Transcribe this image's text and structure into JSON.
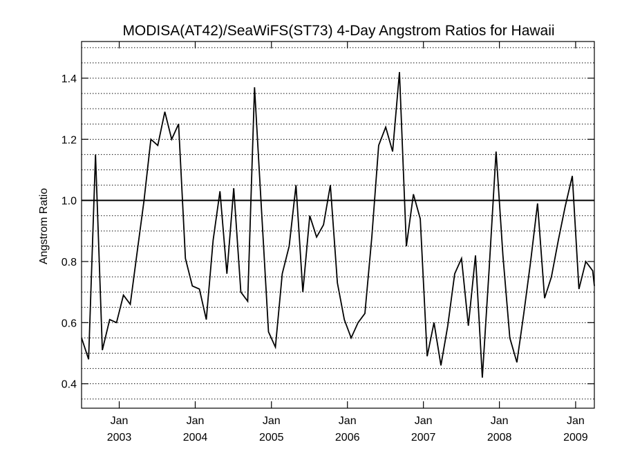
{
  "chart_data": {
    "type": "line",
    "title": "MODISA(AT42)/SeaWiFS(ST73) 4-Day Angstrom Ratios for Hawaii",
    "xlabel": "",
    "ylabel": "Angstrom Ratio",
    "ylim": [
      0.32,
      1.52
    ],
    "xlim": [
      "2002-07-04",
      "2009-04-01"
    ],
    "grid": true,
    "y_ticks": [
      "0.4",
      "0.6",
      "0.8",
      "1.0",
      "1.2",
      "1.4"
    ],
    "x_ticks": [
      {
        "month": "Jan",
        "year": "2003",
        "date": "2003-01-01"
      },
      {
        "month": "Jan",
        "year": "2004",
        "date": "2004-01-01"
      },
      {
        "month": "Jan",
        "year": "2005",
        "date": "2005-01-01"
      },
      {
        "month": "Jan",
        "year": "2006",
        "date": "2006-01-01"
      },
      {
        "month": "Jan",
        "year": "2007",
        "date": "2007-01-01"
      },
      {
        "month": "Jan",
        "year": "2008",
        "date": "2008-01-01"
      },
      {
        "month": "Jan",
        "year": "2009",
        "date": "2009-01-01"
      }
    ],
    "reference_line": 1.0,
    "line_color": "#000000",
    "series": [
      {
        "x": [
          "2002-07-04",
          "2002-08-07",
          "2002-09-09",
          "2002-10-12",
          "2002-11-16",
          "2002-12-19",
          "2003-01-21",
          "2003-02-23",
          "2003-03-28",
          "2003-04-30",
          "2003-06-02",
          "2003-07-05",
          "2003-08-08",
          "2003-09-10",
          "2003-10-13",
          "2003-11-15",
          "2003-12-18",
          "2004-01-21",
          "2004-02-23",
          "2004-03-27",
          "2004-04-29",
          "2004-06-01",
          "2004-07-04",
          "2004-08-07",
          "2004-09-09",
          "2004-10-12",
          "2004-11-15",
          "2004-12-18",
          "2005-01-20",
          "2005-02-22",
          "2005-03-27",
          "2005-04-29",
          "2005-06-01",
          "2005-07-04",
          "2005-08-06",
          "2005-09-08",
          "2005-10-11",
          "2005-11-14",
          "2005-12-17",
          "2006-01-19",
          "2006-02-21",
          "2006-03-26",
          "2006-04-28",
          "2006-05-31",
          "2006-07-04",
          "2006-08-06",
          "2006-09-08",
          "2006-10-11",
          "2006-11-14",
          "2006-12-17",
          "2007-01-19",
          "2007-02-21",
          "2007-03-26",
          "2007-04-28",
          "2007-05-31",
          "2007-07-03",
          "2007-08-05",
          "2007-09-08",
          "2007-10-11",
          "2007-11-13",
          "2007-12-16",
          "2008-01-18",
          "2008-02-20",
          "2008-03-25",
          "2008-04-27",
          "2008-05-30",
          "2008-07-02",
          "2008-08-05",
          "2008-09-07",
          "2008-10-10",
          "2008-11-12",
          "2008-12-16",
          "2009-01-17",
          "2009-02-19",
          "2009-03-24",
          "2009-04-01"
        ],
        "y": [
          0.55,
          0.48,
          1.15,
          0.51,
          0.61,
          0.6,
          0.69,
          0.66,
          0.83,
          1.0,
          1.2,
          1.18,
          1.29,
          1.2,
          1.25,
          0.81,
          0.72,
          0.71,
          0.61,
          0.87,
          1.03,
          0.76,
          1.04,
          0.7,
          0.67,
          1.37,
          0.96,
          0.57,
          0.52,
          0.76,
          0.85,
          1.05,
          0.7,
          0.95,
          0.88,
          0.92,
          1.05,
          0.73,
          0.61,
          0.55,
          0.6,
          0.63,
          0.88,
          1.18,
          1.24,
          1.16,
          1.42,
          0.85,
          1.02,
          0.94,
          0.49,
          0.6,
          0.46,
          0.59,
          0.76,
          0.81,
          0.59,
          0.82,
          0.42,
          0.78,
          1.16,
          0.82,
          0.55,
          0.47,
          0.63,
          0.8,
          0.99,
          0.68,
          0.75,
          0.87,
          0.98,
          1.08,
          0.71,
          0.8,
          0.77,
          0.72
        ]
      }
    ]
  }
}
